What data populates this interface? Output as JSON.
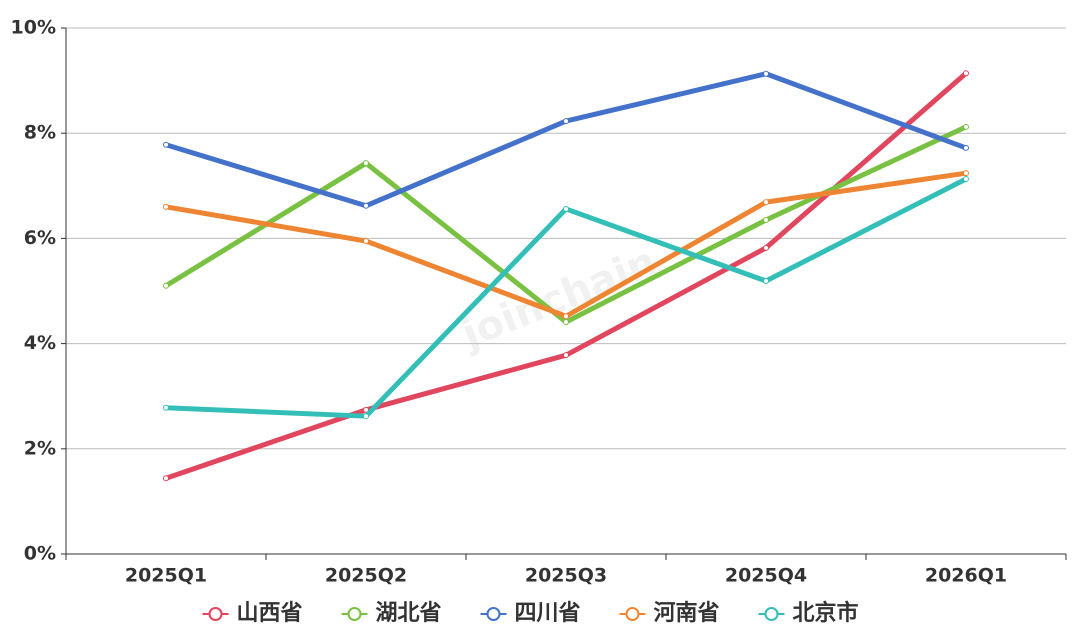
{
  "chart_data": {
    "type": "line",
    "watermark": "joinchain",
    "categories": [
      "2025Q1",
      "2025Q2",
      "2025Q3",
      "2025Q4",
      "2026Q1"
    ],
    "series": [
      {
        "name": "山西省",
        "color": "#e0465e",
        "values": [
          1.44,
          2.74,
          3.78,
          5.82,
          9.14
        ]
      },
      {
        "name": "湖北省",
        "color": "#79c142",
        "values": [
          5.1,
          7.43,
          4.41,
          6.35,
          8.12
        ]
      },
      {
        "name": "四川省",
        "color": "#4472ca",
        "values": [
          7.78,
          6.62,
          8.23,
          9.13,
          7.72
        ]
      },
      {
        "name": "河南省",
        "color": "#ee8533",
        "values": [
          6.6,
          5.95,
          4.52,
          6.69,
          7.24
        ]
      },
      {
        "name": "北京市",
        "color": "#33bfb7",
        "values": [
          2.78,
          2.62,
          6.56,
          5.19,
          7.13
        ]
      }
    ],
    "ylim": [
      0,
      10
    ],
    "yticks": [
      {
        "value": 0,
        "label": "0%"
      },
      {
        "value": 2,
        "label": "2%"
      },
      {
        "value": 4,
        "label": "4%"
      },
      {
        "value": 6,
        "label": "6%"
      },
      {
        "value": 8,
        "label": "8%"
      },
      {
        "value": 10,
        "label": "10%"
      }
    ],
    "grid": true,
    "legend": "bottom"
  }
}
